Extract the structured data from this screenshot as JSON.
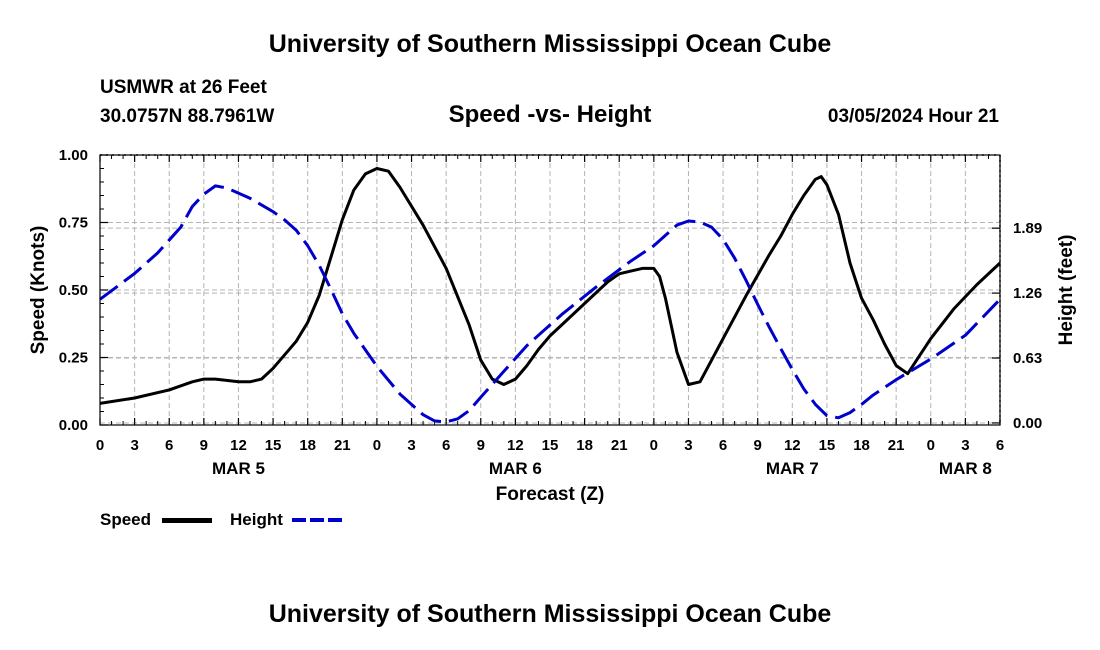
{
  "header": {
    "title_top": "University of Southern Mississippi Ocean Cube",
    "station": "USMWR at 26 Feet",
    "coords": "30.0757N  88.7961W",
    "subtitle": "Speed -vs- Height",
    "datetime": "03/05/2024 Hour 21",
    "title_bottom": "University of Southern Mississippi Ocean Cube"
  },
  "chart_data": {
    "type": "line",
    "title": "Speed -vs- Height",
    "xlabel": "Forecast (Z)",
    "ylabel": "Speed (Knots)",
    "y2label": "Height (feet)",
    "x_unit": "hours from MAR 5 00Z",
    "xlim": [
      0,
      78
    ],
    "ylim": [
      0,
      1
    ],
    "y2lim": [
      -0.02,
      2.6
    ],
    "grid": true,
    "x_tick_values": [
      0,
      3,
      6,
      9,
      12,
      15,
      18,
      21,
      24,
      27,
      30,
      33,
      36,
      39,
      42,
      45,
      48,
      51,
      54,
      57,
      60,
      63,
      66,
      69,
      72,
      75,
      78
    ],
    "x_tick_labels": [
      "0",
      "3",
      "6",
      "9",
      "12",
      "15",
      "18",
      "21",
      "0",
      "3",
      "6",
      "9",
      "12",
      "15",
      "18",
      "21",
      "0",
      "3",
      "6",
      "9",
      "12",
      "15",
      "18",
      "21",
      "0",
      "3",
      "6"
    ],
    "date_labels": [
      {
        "x": 12,
        "label": "MAR 5"
      },
      {
        "x": 36,
        "label": "MAR 6"
      },
      {
        "x": 60,
        "label": "MAR 7"
      },
      {
        "x": 75,
        "label": "MAR 8"
      }
    ],
    "y_ticks": [
      0,
      0.25,
      0.5,
      0.75,
      1.0
    ],
    "y_tick_labels": [
      "0.00",
      "0.25",
      "0.50",
      "0.75",
      "1.00"
    ],
    "y2_ticks": [
      0,
      0.63,
      1.26,
      1.89
    ],
    "y2_tick_labels": [
      "0.00",
      "0.63",
      "1.26",
      "1.89"
    ],
    "series": [
      {
        "name": "Speed",
        "axis": "left",
        "color": "#000000",
        "dash": "solid",
        "x": [
          0,
          3,
          6,
          8,
          9,
          10,
          12,
          13,
          14,
          15,
          17,
          18,
          19,
          20,
          21,
          22,
          23,
          24,
          25,
          26,
          28,
          30,
          32,
          33,
          34,
          35,
          36,
          37,
          38,
          39,
          40,
          42,
          44,
          45,
          46,
          47,
          48,
          48.5,
          49,
          50,
          51,
          52,
          54,
          56,
          58,
          59,
          60,
          61,
          62,
          62.5,
          63,
          64,
          65,
          66,
          67,
          68,
          69,
          70,
          72,
          74,
          76,
          78
        ],
        "y": [
          0.08,
          0.1,
          0.13,
          0.16,
          0.17,
          0.17,
          0.16,
          0.16,
          0.17,
          0.21,
          0.31,
          0.38,
          0.48,
          0.62,
          0.76,
          0.87,
          0.93,
          0.95,
          0.94,
          0.88,
          0.74,
          0.58,
          0.37,
          0.24,
          0.17,
          0.15,
          0.17,
          0.22,
          0.28,
          0.33,
          0.37,
          0.45,
          0.53,
          0.56,
          0.57,
          0.58,
          0.58,
          0.55,
          0.47,
          0.27,
          0.15,
          0.16,
          0.32,
          0.48,
          0.63,
          0.7,
          0.78,
          0.85,
          0.91,
          0.92,
          0.89,
          0.78,
          0.6,
          0.47,
          0.39,
          0.3,
          0.22,
          0.19,
          0.32,
          0.43,
          0.52,
          0.6
        ]
      },
      {
        "name": "Height",
        "axis": "right",
        "color": "#0000cc",
        "dash": "dashed",
        "x": [
          0,
          3,
          5,
          7,
          8,
          9,
          10,
          11,
          13,
          15,
          16,
          17,
          18,
          19,
          20,
          21,
          22,
          24,
          26,
          28,
          29,
          30,
          31,
          32,
          33,
          35,
          37,
          40,
          43,
          46,
          48,
          49,
          50,
          51,
          52,
          53,
          54,
          55,
          56,
          57,
          58,
          59,
          60,
          61,
          62,
          63,
          64,
          65,
          66,
          67,
          69,
          72,
          75,
          78
        ],
        "y": [
          1.2,
          1.45,
          1.65,
          1.9,
          2.1,
          2.22,
          2.3,
          2.28,
          2.18,
          2.05,
          1.97,
          1.87,
          1.72,
          1.53,
          1.3,
          1.06,
          0.87,
          0.55,
          0.28,
          0.08,
          0.02,
          0.01,
          0.04,
          0.12,
          0.25,
          0.5,
          0.75,
          1.05,
          1.32,
          1.57,
          1.72,
          1.82,
          1.92,
          1.96,
          1.95,
          1.9,
          1.78,
          1.6,
          1.38,
          1.15,
          0.93,
          0.72,
          0.52,
          0.33,
          0.18,
          0.07,
          0.05,
          0.1,
          0.18,
          0.27,
          0.42,
          0.62,
          0.85,
          1.2
        ]
      }
    ]
  },
  "legend": {
    "speed_label": "Speed",
    "height_label": "Height"
  }
}
